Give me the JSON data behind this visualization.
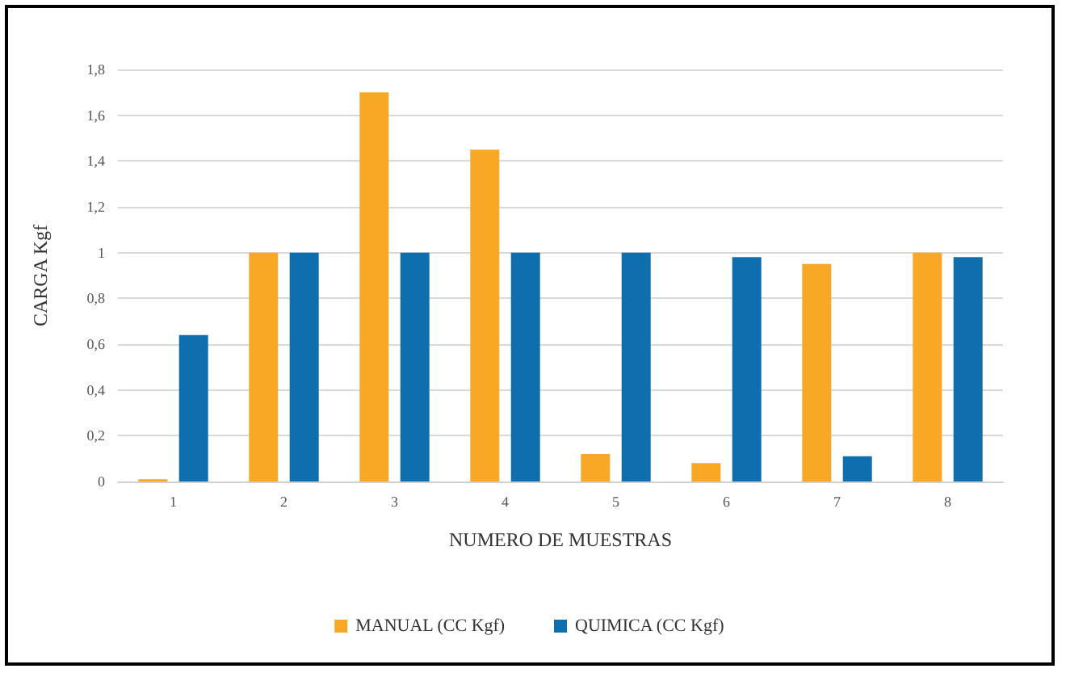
{
  "chart_data": {
    "type": "bar",
    "xlabel": "NUMERO DE MUESTRAS",
    "ylabel": "CARGA Kgf",
    "categories": [
      "1",
      "2",
      "3",
      "4",
      "5",
      "6",
      "7",
      "8"
    ],
    "series": [
      {
        "name": "MANUAL (CC Kgf)",
        "color": "#f9a825",
        "values": [
          0.01,
          1,
          1.7,
          1.45,
          0.12,
          0.08,
          0.95,
          1
        ]
      },
      {
        "name": "QUIMICA (CC Kgf)",
        "color": "#0f6fae",
        "values": [
          0.64,
          1,
          1,
          1,
          1,
          0.98,
          0.11,
          0.98
        ]
      }
    ],
    "ylim": [
      0,
      1.8
    ],
    "yticks": [
      0,
      {
        "value": 0.2,
        "label": "0,2"
      },
      {
        "value": 0.4,
        "label": "0,4"
      },
      {
        "value": 0.6,
        "label": "0,6"
      },
      {
        "value": 0.8,
        "label": "0,8"
      },
      1,
      {
        "value": 1.2,
        "label": "1,2"
      },
      {
        "value": 1.4,
        "label": "1,4"
      },
      {
        "value": 1.6,
        "label": "1,6"
      },
      {
        "value": 1.8,
        "label": "1,8"
      }
    ],
    "grid": "y",
    "legend": "bottom"
  }
}
